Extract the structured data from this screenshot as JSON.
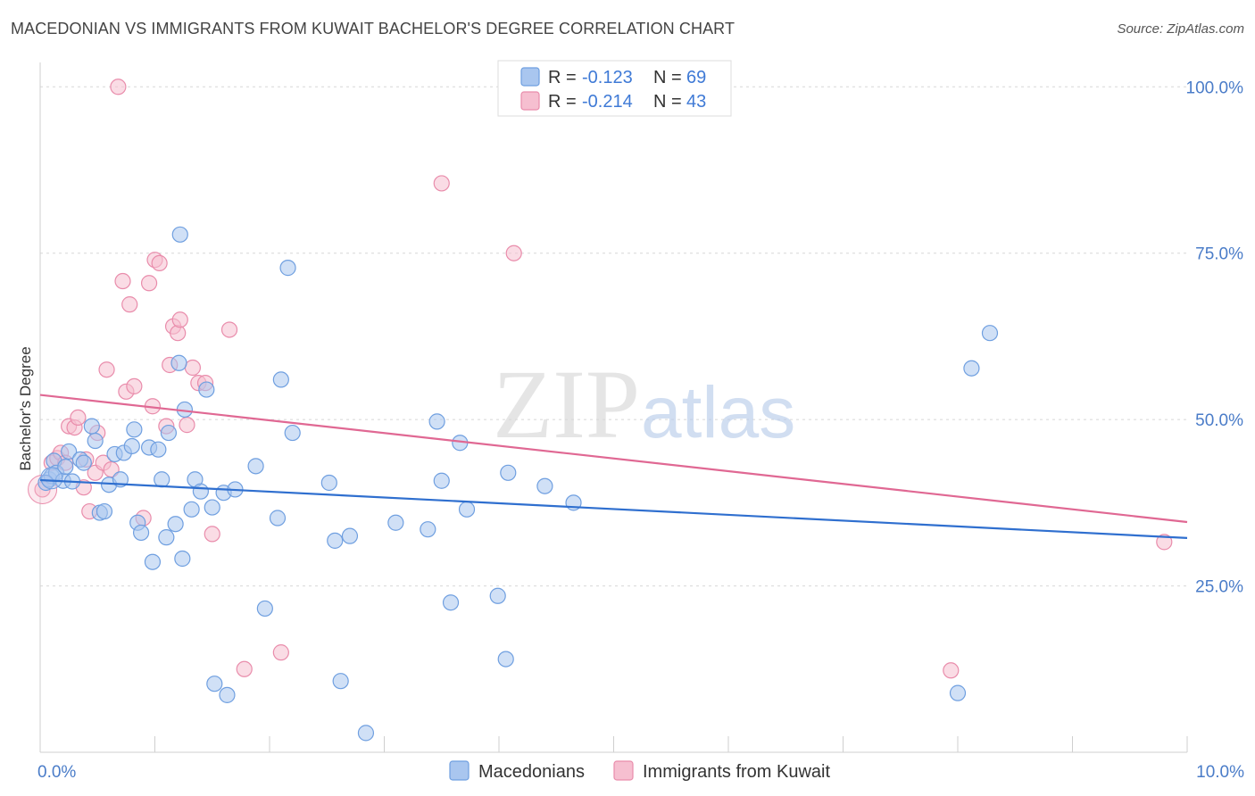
{
  "title": "MACEDONIAN VS IMMIGRANTS FROM KUWAIT BACHELOR'S DEGREE CORRELATION CHART",
  "source": "Source: ZipAtlas.com",
  "watermark": {
    "zip": "ZIP",
    "atlas": "atlas"
  },
  "colors": {
    "blue": "#6f9fe0",
    "blue_fill": "#a9c6ef",
    "blue_line": "#2f6fcf",
    "pink": "#e98cab",
    "pink_fill": "#f6bfd0",
    "pink_line": "#e06893",
    "grid": "#d7d7d7",
    "axis_text": "#4a7cc8"
  },
  "legend_box": {
    "rows": [
      {
        "r_label": "R = ",
        "r_value": "-0.123",
        "n_label": "N = ",
        "n_value": "69"
      },
      {
        "r_label": "R = ",
        "r_value": "-0.214",
        "n_label": "N = ",
        "n_value": "43"
      }
    ]
  },
  "chart_data": {
    "type": "scatter",
    "title": "MACEDONIAN VS IMMIGRANTS FROM KUWAIT BACHELOR'S DEGREE CORRELATION CHART",
    "xlabel": "",
    "ylabel": "Bachelor's Degree",
    "xlim": [
      0,
      10
    ],
    "ylim": [
      0,
      105
    ],
    "x_ticks": [
      {
        "value": 0,
        "label": "0.0%"
      },
      {
        "value": 10,
        "label": "10.0%"
      }
    ],
    "y_ticks": [
      {
        "value": 25,
        "label": "25.0%"
      },
      {
        "value": 50,
        "label": "50.0%"
      },
      {
        "value": 75,
        "label": "75.0%"
      },
      {
        "value": 100,
        "label": "100.0%"
      }
    ],
    "grid": "horizontal dashed",
    "legend_position": "bottom-center",
    "series": [
      {
        "name": "Macedonians",
        "color": "#6f9fe0",
        "trend": {
          "x": [
            0,
            10
          ],
          "y": [
            40.9,
            32.2
          ]
        },
        "points": [
          [
            0.08,
            41.0
          ],
          [
            0.1,
            41.5
          ],
          [
            0.12,
            43.8
          ],
          [
            0.14,
            42.0
          ],
          [
            0.2,
            40.8
          ],
          [
            0.22,
            42.9
          ],
          [
            0.25,
            45.2
          ],
          [
            0.28,
            40.7
          ],
          [
            0.35,
            44.0
          ],
          [
            0.38,
            43.5
          ],
          [
            0.45,
            49.0
          ],
          [
            0.48,
            46.8
          ],
          [
            0.52,
            36.0
          ],
          [
            0.56,
            36.2
          ],
          [
            0.6,
            40.2
          ],
          [
            0.65,
            44.8
          ],
          [
            0.7,
            41.0
          ],
          [
            0.73,
            45.0
          ],
          [
            0.8,
            46.0
          ],
          [
            0.82,
            48.5
          ],
          [
            0.85,
            34.5
          ],
          [
            0.88,
            33.0
          ],
          [
            0.95,
            45.8
          ],
          [
            0.98,
            28.6
          ],
          [
            1.03,
            45.5
          ],
          [
            1.06,
            41.0
          ],
          [
            1.1,
            32.3
          ],
          [
            1.12,
            48.0
          ],
          [
            1.18,
            34.3
          ],
          [
            1.21,
            58.5
          ],
          [
            1.24,
            29.1
          ],
          [
            1.26,
            51.5
          ],
          [
            1.32,
            36.5
          ],
          [
            1.35,
            41.0
          ],
          [
            1.4,
            39.2
          ],
          [
            1.45,
            54.5
          ],
          [
            1.5,
            36.8
          ],
          [
            1.52,
            10.3
          ],
          [
            1.6,
            39.0
          ],
          [
            1.63,
            8.6
          ],
          [
            1.7,
            39.5
          ],
          [
            1.88,
            43.0
          ],
          [
            1.96,
            21.6
          ],
          [
            2.07,
            35.2
          ],
          [
            2.1,
            56.0
          ],
          [
            2.16,
            72.8
          ],
          [
            2.2,
            48.0
          ],
          [
            2.52,
            40.5
          ],
          [
            2.57,
            31.8
          ],
          [
            2.62,
            10.7
          ],
          [
            2.7,
            32.5
          ],
          [
            2.84,
            2.9
          ],
          [
            3.1,
            34.5
          ],
          [
            3.38,
            33.5
          ],
          [
            3.46,
            49.7
          ],
          [
            3.5,
            40.8
          ],
          [
            3.58,
            22.5
          ],
          [
            3.66,
            46.5
          ],
          [
            3.72,
            36.5
          ],
          [
            3.99,
            23.5
          ],
          [
            4.06,
            14.0
          ],
          [
            4.08,
            42.0
          ],
          [
            4.4,
            40.0
          ],
          [
            4.65,
            37.5
          ],
          [
            1.22,
            77.8
          ],
          [
            8.0,
            8.9
          ],
          [
            8.12,
            57.7
          ],
          [
            8.28,
            63.0
          ],
          [
            0.05,
            40.5
          ]
        ]
      },
      {
        "name": "Immigrants from Kuwait",
        "color": "#e98cab",
        "trend": {
          "x": [
            0,
            10
          ],
          "y": [
            53.7,
            34.6
          ]
        },
        "points": [
          [
            0.02,
            39.5
          ],
          [
            0.1,
            43.5
          ],
          [
            0.15,
            44.2
          ],
          [
            0.18,
            45.0
          ],
          [
            0.22,
            43.5
          ],
          [
            0.25,
            49.0
          ],
          [
            0.3,
            48.8
          ],
          [
            0.33,
            50.3
          ],
          [
            0.38,
            39.8
          ],
          [
            0.4,
            44.0
          ],
          [
            0.43,
            36.2
          ],
          [
            0.48,
            42.0
          ],
          [
            0.5,
            48.0
          ],
          [
            0.55,
            43.5
          ],
          [
            0.58,
            57.5
          ],
          [
            0.62,
            42.5
          ],
          [
            0.68,
            100.0
          ],
          [
            0.72,
            70.8
          ],
          [
            0.75,
            54.2
          ],
          [
            0.78,
            67.3
          ],
          [
            0.82,
            55.0
          ],
          [
            0.9,
            35.2
          ],
          [
            0.95,
            70.5
          ],
          [
            0.98,
            52.0
          ],
          [
            1.0,
            74.0
          ],
          [
            1.04,
            73.5
          ],
          [
            1.1,
            49.0
          ],
          [
            1.13,
            58.2
          ],
          [
            1.16,
            64.0
          ],
          [
            1.2,
            63.0
          ],
          [
            1.22,
            65.0
          ],
          [
            1.28,
            49.2
          ],
          [
            1.33,
            57.8
          ],
          [
            1.38,
            55.5
          ],
          [
            1.44,
            55.5
          ],
          [
            1.5,
            32.8
          ],
          [
            1.65,
            63.5
          ],
          [
            1.78,
            12.5
          ],
          [
            2.1,
            15.0
          ],
          [
            3.5,
            85.5
          ],
          [
            4.13,
            75.0
          ],
          [
            7.94,
            12.3
          ],
          [
            9.8,
            31.6
          ]
        ]
      }
    ]
  },
  "bottom_legend": [
    {
      "label": "Macedonians"
    },
    {
      "label": "Immigrants from Kuwait"
    }
  ]
}
